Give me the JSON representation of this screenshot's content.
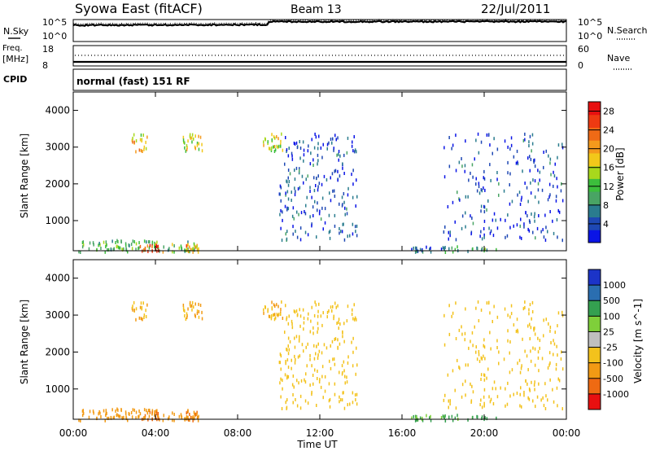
{
  "header": {
    "station": "Syowa East (fitACF)",
    "beam": "Beam 13",
    "date": "22/Jul/2011"
  },
  "noise_panel": {
    "left_label": "N.Sky",
    "right_label": "N.Search",
    "ticks_left": [
      "10^5",
      "10^0"
    ],
    "ticks_right": [
      "10^5",
      "10^0"
    ]
  },
  "freq_panel": {
    "left_label_top": "Freq.",
    "left_label_bottom": "[MHz]",
    "right_label": "Nave",
    "ticks_left": [
      "18",
      "8"
    ],
    "ticks_right": [
      "60",
      "0"
    ]
  },
  "cpid": {
    "label": "CPID",
    "text": "normal (fast) 151 RF"
  },
  "x_axis": {
    "title": "Time UT",
    "ticks": [
      "00:00",
      "04:00",
      "08:00",
      "12:00",
      "16:00",
      "20:00",
      "00:00"
    ],
    "range_hours": [
      0,
      24
    ]
  },
  "y_axis": {
    "title": "Slant Range [km]",
    "ticks": [
      "1000",
      "2000",
      "3000",
      "4000"
    ],
    "range_km": [
      180,
      4500
    ]
  },
  "power_colorbar": {
    "title": "Power [dB]",
    "ticks": [
      "4",
      "8",
      "12",
      "16",
      "20",
      "24",
      "28"
    ],
    "colors": [
      "#0a14e6",
      "#1e48b4",
      "#2a7c8e",
      "#49a464",
      "#3cbe3c",
      "#a8d81c",
      "#f2c81a",
      "#f49a1c",
      "#ef6a16",
      "#ee3a12",
      "#e81010"
    ]
  },
  "velocity_colorbar": {
    "title": "Velocity [m s^-1]",
    "ticks": [
      "1000",
      "500",
      "100",
      "25",
      "-25",
      "-100",
      "-500",
      "-1000"
    ],
    "colors": [
      "#1c34c8",
      "#2a6eb0",
      "#34a050",
      "#7fcf3a",
      "#bfbfbf",
      "#f3c21c",
      "#f29a14",
      "#ef6a12",
      "#e81010"
    ]
  },
  "chart_data": {
    "type": "heatmap",
    "title": "Syowa East (fitACF) Beam 13 22/Jul/2011",
    "xlabel": "Time UT",
    "ylabel": "Slant Range [km]",
    "x_range_hours": [
      0,
      24
    ],
    "y_range_km": [
      180,
      4500
    ],
    "panels": [
      {
        "name": "Power",
        "units": "dB",
        "scale": [
          0,
          30
        ],
        "clusters": [
          {
            "t0": 0.2,
            "t1": 5.9,
            "r0": 180,
            "r1": 500,
            "level": 12
          },
          {
            "t0": 3.2,
            "t1": 4.4,
            "r0": 180,
            "r1": 400,
            "level": 24
          },
          {
            "t0": 5.4,
            "t1": 6.1,
            "r0": 180,
            "r1": 400,
            "level": 20
          },
          {
            "t0": 2.8,
            "t1": 3.6,
            "r0": 2900,
            "r1": 3400,
            "level": 18
          },
          {
            "t0": 5.3,
            "t1": 6.3,
            "r0": 2900,
            "r1": 3400,
            "level": 16
          },
          {
            "t0": 9.2,
            "t1": 10.3,
            "r0": 2900,
            "r1": 3400,
            "level": 16
          },
          {
            "t0": 10.0,
            "t1": 13.8,
            "r0": 500,
            "r1": 3400,
            "level": 4
          },
          {
            "t0": 16.4,
            "t1": 18.0,
            "r0": 180,
            "r1": 330,
            "level": 6
          },
          {
            "t0": 18.0,
            "t1": 20.6,
            "r0": 180,
            "r1": 330,
            "level": 10
          },
          {
            "t0": 18.0,
            "t1": 23.8,
            "r0": 500,
            "r1": 3400,
            "level": 4
          }
        ]
      },
      {
        "name": "Velocity",
        "units": "m s^-1",
        "scale": [
          -1000,
          1000
        ],
        "clusters": [
          {
            "t0": 0.2,
            "t1": 5.9,
            "r0": 180,
            "r1": 500,
            "level": -300
          },
          {
            "t0": 3.2,
            "t1": 4.4,
            "r0": 180,
            "r1": 450,
            "level": -500
          },
          {
            "t0": 5.4,
            "t1": 6.1,
            "r0": 180,
            "r1": 450,
            "level": -500
          },
          {
            "t0": 2.8,
            "t1": 3.6,
            "r0": 2900,
            "r1": 3400,
            "level": -100
          },
          {
            "t0": 5.3,
            "t1": 6.3,
            "r0": 2900,
            "r1": 3400,
            "level": -100
          },
          {
            "t0": 9.2,
            "t1": 10.3,
            "r0": 2900,
            "r1": 3400,
            "level": -100
          },
          {
            "t0": 10.0,
            "t1": 13.8,
            "r0": 500,
            "r1": 3400,
            "level": -50
          },
          {
            "t0": 16.4,
            "t1": 18.0,
            "r0": 180,
            "r1": 330,
            "level": 100
          },
          {
            "t0": 18.0,
            "t1": 20.6,
            "r0": 180,
            "r1": 330,
            "level": 150
          },
          {
            "t0": 18.0,
            "t1": 23.8,
            "r0": 500,
            "r1": 3400,
            "level": -60
          }
        ]
      }
    ],
    "noise_sky_log10": {
      "start": 4.0,
      "end": 4.9,
      "step_hour": 9.5
    },
    "frequency_mhz": 11.0,
    "nave": 30
  }
}
